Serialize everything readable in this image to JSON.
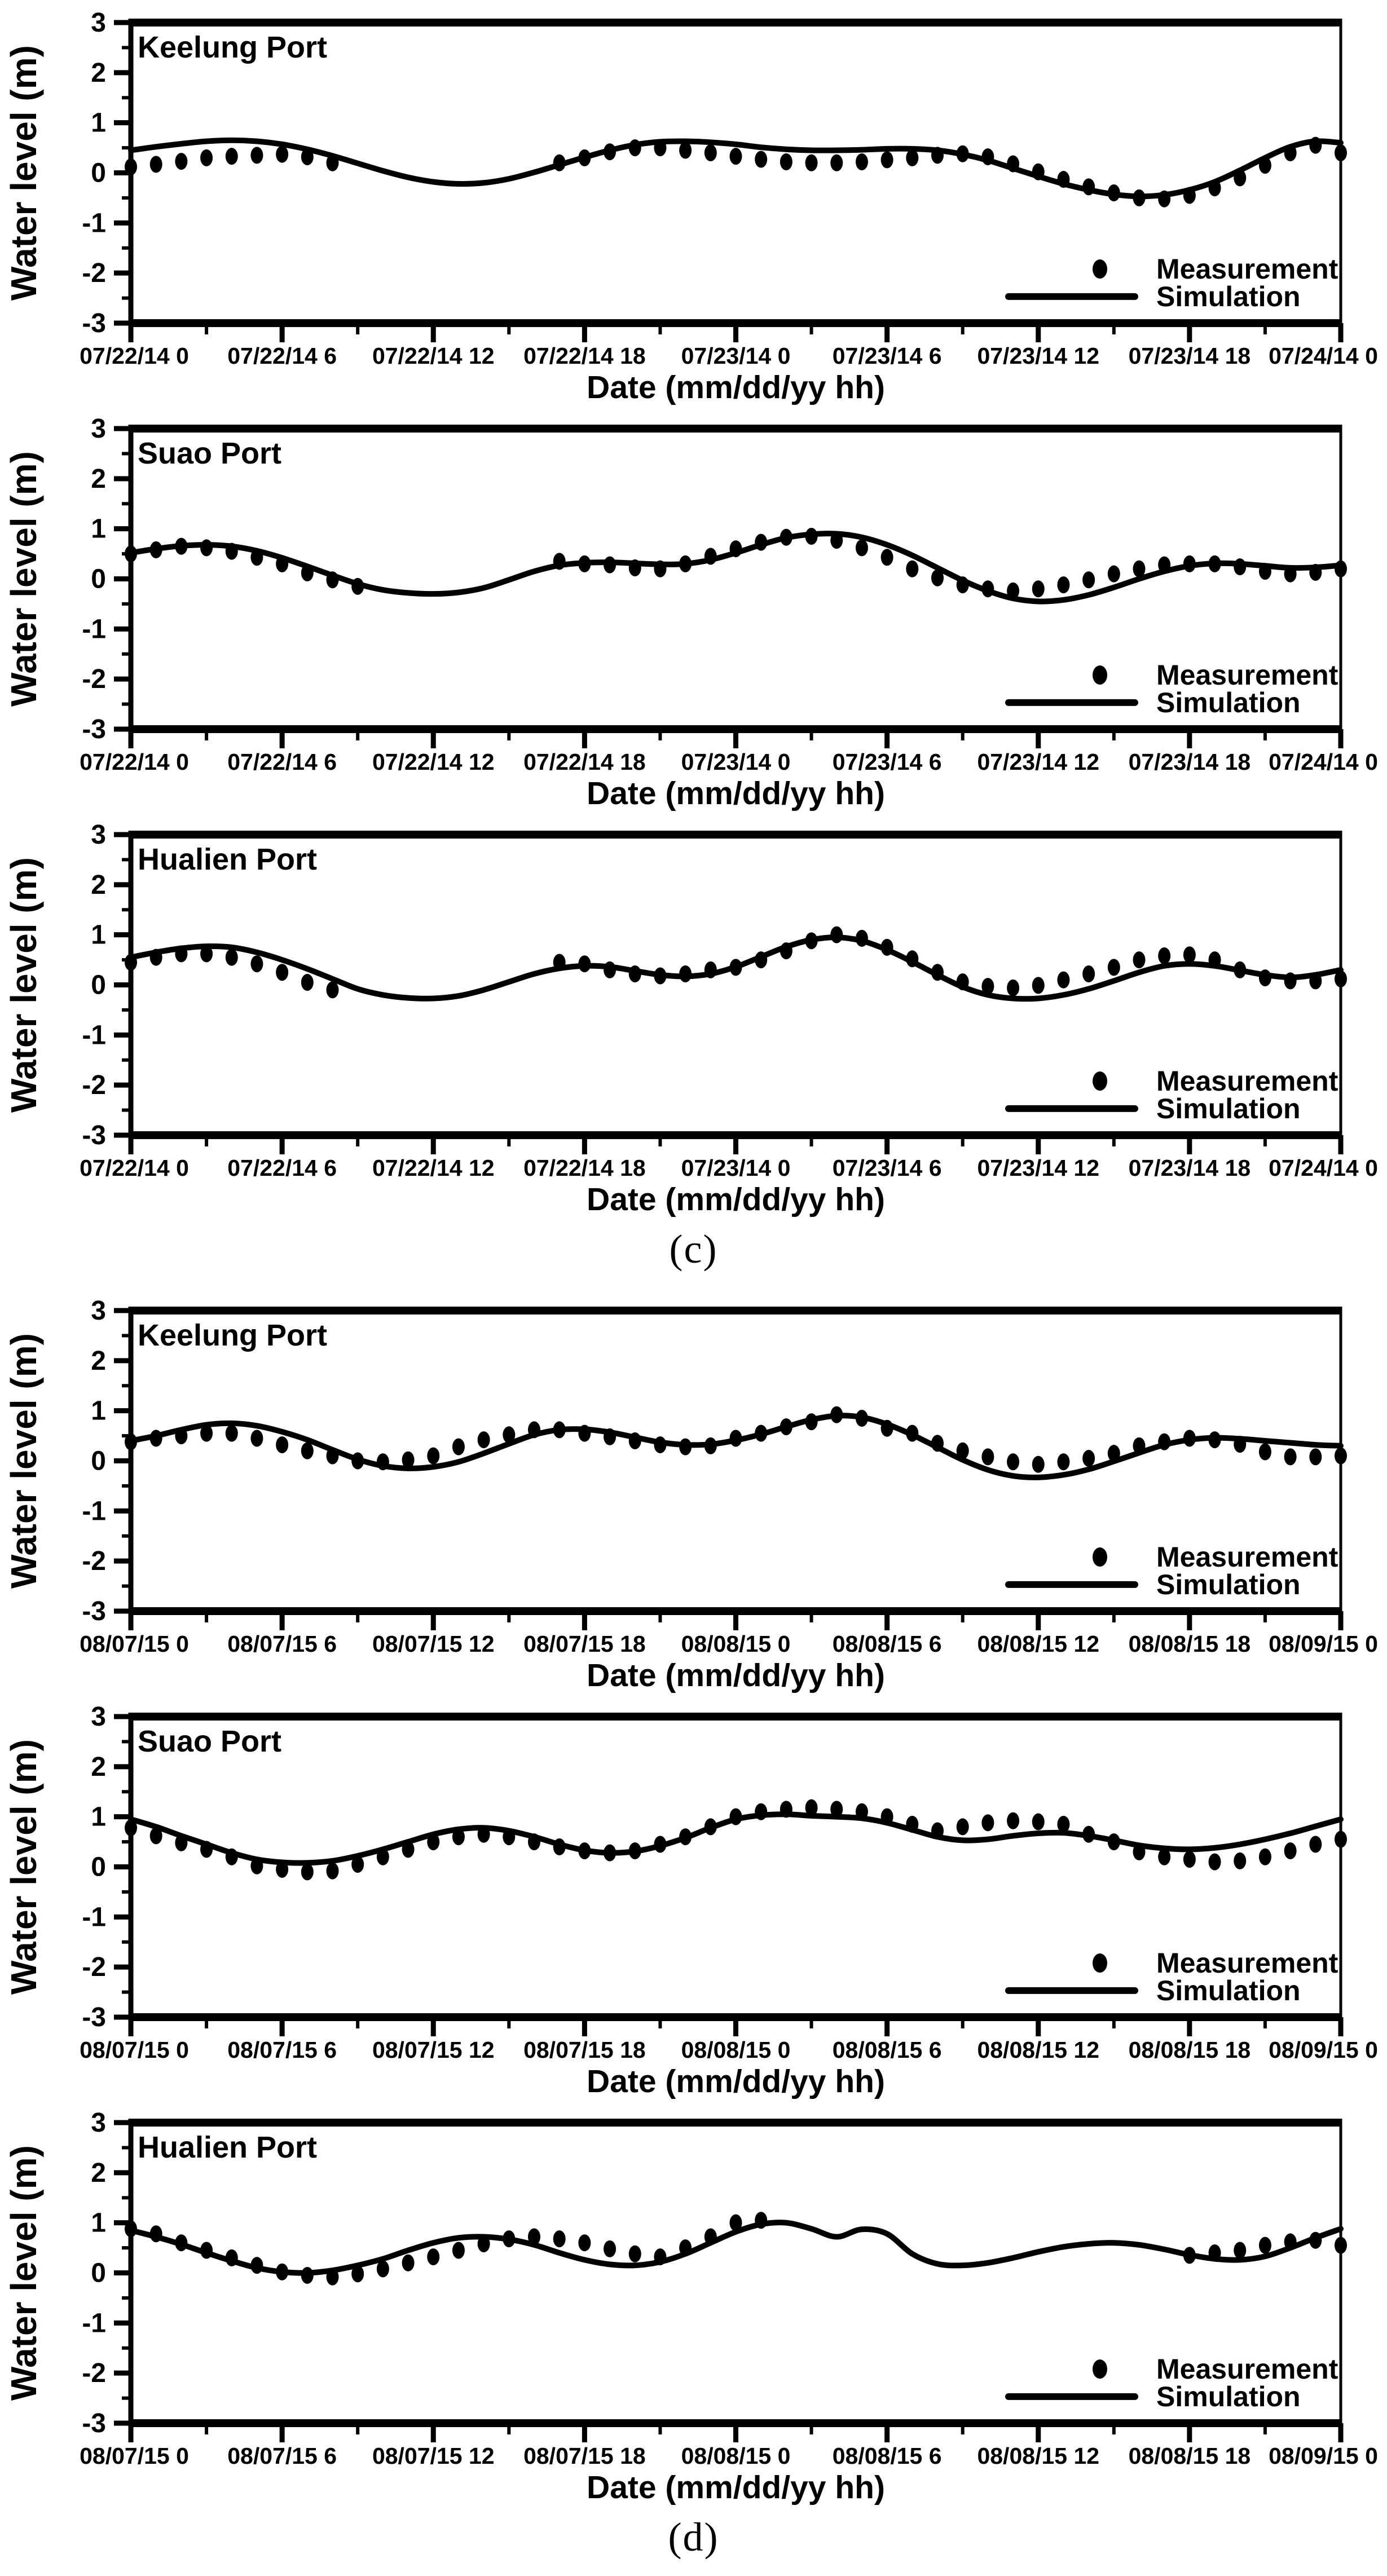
{
  "figure": {
    "ylabel": "Water level (m)",
    "xlabel": "Date (mm/dd/yy hh)",
    "ylim": [
      -3,
      3
    ],
    "ytick_step": 1,
    "yminor_step": 0.5,
    "x_hours": 48,
    "xmajor_step_hours": 6,
    "xminor_step_hours": 3,
    "grid": "off",
    "legend_position": "bottom-right-inside",
    "legend": {
      "measurement": "Measurement",
      "simulation": "Simulation"
    },
    "colors": {
      "ink": "#000000",
      "background": "#ffffff"
    }
  },
  "panels": [
    {
      "label": "(c)",
      "chart_indexes": [
        0,
        1,
        2
      ]
    },
    {
      "label": "(d)",
      "chart_indexes": [
        3,
        4,
        5
      ]
    }
  ],
  "chart_data": [
    {
      "type": "line+scatter",
      "panel": "(c)",
      "title": "Keelung Port",
      "xlabel": "Date (mm/dd/yy hh)",
      "ylabel": "Water level (m)",
      "ylim": [
        -3,
        3
      ],
      "x_unit": "hours from 07/22/14 0",
      "x_tick_labels": [
        "07/22/14 0",
        "07/22/14 6",
        "07/22/14 12",
        "07/22/14 18",
        "07/23/14 0",
        "07/23/14 6",
        "07/23/14 12",
        "07/23/14 18",
        "07/24/14 0"
      ],
      "series": [
        {
          "name": "Measurement",
          "type": "scatter",
          "values": [
            0.12,
            0.17,
            0.23,
            0.3,
            0.33,
            0.35,
            0.37,
            0.32,
            0.2,
            null,
            null,
            null,
            null,
            null,
            null,
            null,
            null,
            0.2,
            0.3,
            0.42,
            0.5,
            0.5,
            0.45,
            0.4,
            0.33,
            0.27,
            0.22,
            0.2,
            0.2,
            0.22,
            0.26,
            0.3,
            0.35,
            0.38,
            0.32,
            0.18,
            0.02,
            -0.13,
            -0.28,
            -0.4,
            -0.5,
            -0.52,
            -0.45,
            -0.3,
            -0.1,
            0.15,
            0.4,
            0.55,
            0.4
          ]
        },
        {
          "name": "Simulation",
          "type": "line",
          "values": [
            0.45,
            0.52,
            0.58,
            0.63,
            0.65,
            0.63,
            0.57,
            0.47,
            0.34,
            0.19,
            0.04,
            -0.09,
            -0.18,
            -0.22,
            -0.2,
            -0.12,
            0.01,
            0.16,
            0.31,
            0.45,
            0.56,
            0.62,
            0.63,
            0.61,
            0.57,
            0.51,
            0.47,
            0.45,
            0.45,
            0.46,
            0.48,
            0.48,
            0.45,
            0.37,
            0.25,
            0.09,
            -0.07,
            -0.22,
            -0.34,
            -0.43,
            -0.47,
            -0.44,
            -0.34,
            -0.18,
            0.05,
            0.3,
            0.52,
            0.63,
            0.6
          ]
        }
      ]
    },
    {
      "type": "line+scatter",
      "panel": "(c)",
      "title": "Suao Port",
      "xlabel": "Date (mm/dd/yy hh)",
      "ylabel": "Water level (m)",
      "ylim": [
        -3,
        3
      ],
      "x_unit": "hours from 07/22/14 0",
      "x_tick_labels": [
        "07/22/14 0",
        "07/22/14 6",
        "07/22/14 12",
        "07/22/14 18",
        "07/23/14 0",
        "07/23/14 6",
        "07/23/14 12",
        "07/23/14 18",
        "07/24/14 0"
      ],
      "series": [
        {
          "name": "Measurement",
          "type": "scatter",
          "values": [
            0.5,
            0.58,
            0.65,
            0.62,
            0.55,
            0.43,
            0.3,
            0.12,
            -0.02,
            -0.15,
            null,
            null,
            null,
            null,
            null,
            null,
            null,
            0.35,
            0.3,
            0.28,
            0.22,
            0.2,
            0.3,
            0.45,
            0.6,
            0.73,
            0.83,
            0.85,
            0.77,
            0.62,
            0.43,
            0.2,
            0.02,
            -0.12,
            -0.2,
            -0.24,
            -0.2,
            -0.12,
            -0.02,
            0.1,
            0.2,
            0.28,
            0.3,
            0.3,
            0.24,
            0.15,
            0.1,
            0.13,
            0.2
          ]
        },
        {
          "name": "Simulation",
          "type": "line",
          "values": [
            0.52,
            0.6,
            0.66,
            0.68,
            0.65,
            0.56,
            0.42,
            0.25,
            0.07,
            -0.1,
            -0.22,
            -0.28,
            -0.3,
            -0.27,
            -0.18,
            -0.02,
            0.15,
            0.27,
            0.32,
            0.33,
            0.31,
            0.29,
            0.3,
            0.38,
            0.52,
            0.68,
            0.82,
            0.89,
            0.9,
            0.83,
            0.68,
            0.47,
            0.22,
            -0.03,
            -0.24,
            -0.39,
            -0.45,
            -0.42,
            -0.32,
            -0.17,
            0.0,
            0.15,
            0.26,
            0.31,
            0.3,
            0.26,
            0.22,
            0.23,
            0.27
          ]
        }
      ]
    },
    {
      "type": "line+scatter",
      "panel": "(c)",
      "title": "Hualien Port",
      "xlabel": "Date (mm/dd/yy hh)",
      "ylabel": "Water level (m)",
      "ylim": [
        -3,
        3
      ],
      "x_unit": "hours from 07/22/14 0",
      "x_tick_labels": [
        "07/22/14 0",
        "07/22/14 6",
        "07/22/14 12",
        "07/22/14 18",
        "07/23/14 0",
        "07/23/14 6",
        "07/23/14 12",
        "07/23/14 18",
        "07/24/14 0"
      ],
      "series": [
        {
          "name": "Measurement",
          "type": "scatter",
          "values": [
            0.45,
            0.55,
            0.62,
            0.62,
            0.55,
            0.42,
            0.25,
            0.05,
            -0.1,
            null,
            null,
            null,
            null,
            null,
            null,
            null,
            null,
            0.45,
            0.42,
            0.3,
            0.22,
            0.18,
            0.22,
            0.3,
            0.35,
            0.5,
            0.68,
            0.88,
            1.0,
            0.93,
            0.75,
            0.52,
            0.25,
            0.06,
            -0.03,
            -0.06,
            -0.01,
            0.1,
            0.22,
            0.35,
            0.5,
            0.58,
            0.6,
            0.5,
            0.3,
            0.14,
            0.08,
            0.08,
            0.12
          ]
        },
        {
          "name": "Simulation",
          "type": "line",
          "values": [
            0.55,
            0.65,
            0.73,
            0.77,
            0.75,
            0.65,
            0.5,
            0.32,
            0.12,
            -0.08,
            -0.2,
            -0.26,
            -0.27,
            -0.22,
            -0.1,
            0.06,
            0.22,
            0.33,
            0.38,
            0.36,
            0.28,
            0.2,
            0.17,
            0.22,
            0.36,
            0.56,
            0.76,
            0.9,
            0.95,
            0.88,
            0.7,
            0.46,
            0.2,
            -0.04,
            -0.2,
            -0.27,
            -0.27,
            -0.2,
            -0.08,
            0.08,
            0.25,
            0.38,
            0.42,
            0.38,
            0.29,
            0.2,
            0.15,
            0.2,
            0.3
          ]
        }
      ]
    },
    {
      "type": "line+scatter",
      "panel": "(d)",
      "title": "Keelung Port",
      "xlabel": "Date (mm/dd/yy hh)",
      "ylabel": "Water level (m)",
      "ylim": [
        -3,
        3
      ],
      "x_unit": "hours from 08/07/15 0",
      "x_tick_labels": [
        "08/07/15 0",
        "08/07/15 6",
        "08/07/15 12",
        "08/07/15 18",
        "08/08/15 0",
        "08/08/15 6",
        "08/08/15 12",
        "08/08/15 18",
        "08/09/15 0"
      ],
      "series": [
        {
          "name": "Measurement",
          "type": "scatter",
          "values": [
            0.38,
            0.45,
            0.5,
            0.55,
            0.55,
            0.45,
            0.32,
            0.2,
            0.1,
            0.0,
            -0.02,
            0.02,
            0.1,
            0.28,
            0.42,
            0.52,
            0.62,
            0.62,
            0.55,
            0.48,
            0.4,
            0.32,
            0.28,
            0.3,
            0.45,
            0.55,
            0.68,
            0.78,
            0.92,
            0.85,
            0.65,
            0.55,
            0.35,
            0.2,
            0.08,
            -0.02,
            -0.07,
            -0.02,
            0.05,
            0.15,
            0.3,
            0.38,
            0.45,
            0.42,
            0.33,
            0.18,
            0.08,
            0.08,
            0.1
          ]
        },
        {
          "name": "Simulation",
          "type": "line",
          "values": [
            0.4,
            0.5,
            0.62,
            0.72,
            0.75,
            0.7,
            0.58,
            0.42,
            0.22,
            0.03,
            -0.1,
            -0.15,
            -0.12,
            -0.02,
            0.15,
            0.34,
            0.52,
            0.62,
            0.63,
            0.57,
            0.47,
            0.37,
            0.32,
            0.33,
            0.41,
            0.53,
            0.68,
            0.82,
            0.9,
            0.87,
            0.73,
            0.52,
            0.27,
            0.02,
            -0.18,
            -0.3,
            -0.33,
            -0.28,
            -0.17,
            -0.01,
            0.16,
            0.32,
            0.42,
            0.46,
            0.44,
            0.4,
            0.36,
            0.32,
            0.3
          ]
        }
      ]
    },
    {
      "type": "line+scatter",
      "panel": "(d)",
      "title": "Suao Port",
      "xlabel": "Date (mm/dd/yy hh)",
      "ylabel": "Water level (m)",
      "ylim": [
        -3,
        3
      ],
      "x_unit": "hours from 08/07/15 0",
      "x_tick_labels": [
        "08/07/15 0",
        "08/07/15 6",
        "08/07/15 12",
        "08/07/15 18",
        "08/08/15 0",
        "08/08/15 6",
        "08/08/15 12",
        "08/08/15 18",
        "08/09/15 0"
      ],
      "series": [
        {
          "name": "Measurement",
          "type": "scatter",
          "values": [
            0.78,
            0.62,
            0.48,
            0.35,
            0.2,
            0.02,
            -0.05,
            -0.1,
            -0.08,
            0.05,
            0.2,
            0.35,
            0.5,
            0.6,
            0.65,
            0.6,
            0.5,
            0.4,
            0.32,
            0.28,
            0.32,
            0.45,
            0.6,
            0.8,
            1.0,
            1.1,
            1.15,
            1.18,
            1.15,
            1.1,
            1.0,
            0.85,
            0.72,
            0.8,
            0.88,
            0.92,
            0.9,
            0.85,
            0.65,
            0.5,
            0.3,
            0.2,
            0.15,
            0.1,
            0.12,
            0.2,
            0.32,
            0.45,
            0.55
          ]
        },
        {
          "name": "Simulation",
          "type": "line",
          "values": [
            0.95,
            0.8,
            0.62,
            0.45,
            0.28,
            0.15,
            0.09,
            0.08,
            0.12,
            0.22,
            0.35,
            0.5,
            0.65,
            0.75,
            0.78,
            0.72,
            0.6,
            0.45,
            0.33,
            0.28,
            0.31,
            0.42,
            0.58,
            0.78,
            0.95,
            1.03,
            1.05,
            1.02,
            1.0,
            0.97,
            0.88,
            0.74,
            0.6,
            0.53,
            0.55,
            0.62,
            0.67,
            0.68,
            0.62,
            0.53,
            0.43,
            0.37,
            0.35,
            0.38,
            0.45,
            0.55,
            0.67,
            0.81,
            0.95
          ]
        }
      ]
    },
    {
      "type": "line+scatter",
      "panel": "(d)",
      "title": "Hualien Port",
      "xlabel": "Date (mm/dd/yy hh)",
      "ylabel": "Water level (m)",
      "ylim": [
        -3,
        3
      ],
      "x_unit": "hours from 08/07/15 0",
      "x_tick_labels": [
        "08/07/15 0",
        "08/07/15 6",
        "08/07/15 12",
        "08/07/15 18",
        "08/08/15 0",
        "08/08/15 6",
        "08/08/15 12",
        "08/08/15 18",
        "08/09/15 0"
      ],
      "series": [
        {
          "name": "Measurement",
          "type": "scatter",
          "values": [
            0.88,
            0.78,
            0.6,
            0.45,
            0.3,
            0.15,
            0.02,
            -0.05,
            -0.08,
            -0.02,
            0.08,
            0.2,
            0.32,
            0.45,
            0.58,
            0.68,
            0.72,
            0.68,
            0.6,
            0.48,
            0.38,
            0.32,
            0.5,
            0.72,
            1.0,
            1.05,
            null,
            null,
            null,
            null,
            null,
            null,
            null,
            null,
            null,
            null,
            null,
            null,
            null,
            null,
            null,
            null,
            0.35,
            0.4,
            0.45,
            0.55,
            0.62,
            0.65,
            0.55
          ]
        },
        {
          "name": "Simulation",
          "type": "line",
          "values": [
            0.85,
            0.72,
            0.57,
            0.4,
            0.24,
            0.1,
            0.02,
            0.0,
            0.05,
            0.15,
            0.28,
            0.45,
            0.6,
            0.7,
            0.72,
            0.67,
            0.56,
            0.4,
            0.26,
            0.17,
            0.15,
            0.22,
            0.38,
            0.6,
            0.82,
            0.97,
            1.0,
            0.88,
            0.72,
            0.87,
            0.78,
            0.38,
            0.18,
            0.15,
            0.2,
            0.3,
            0.42,
            0.52,
            0.58,
            0.6,
            0.56,
            0.47,
            0.36,
            0.28,
            0.26,
            0.33,
            0.5,
            0.7,
            0.88
          ]
        }
      ]
    }
  ]
}
